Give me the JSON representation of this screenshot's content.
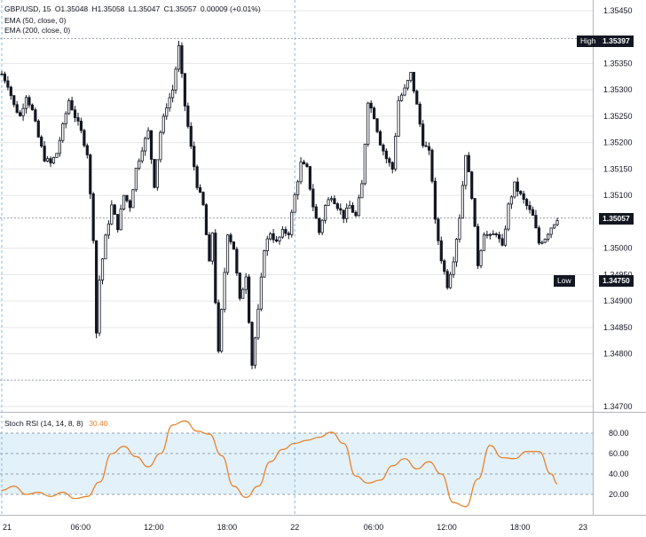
{
  "header": {
    "symbol": "GBP/USD, 15",
    "open": "O1.35048",
    "high": "H1.35058",
    "low": "L1.35047",
    "close": "C1.35057",
    "change": "0.00009 (+0.01%)",
    "ema1": "EMA (50, close, 0)",
    "ema2": "EMA (200, close, 0)"
  },
  "markers": {
    "high_label": "High",
    "high_value": "1.35397",
    "low_label": "Low",
    "low_value": "1.34750",
    "last_value": "1.35057"
  },
  "stoch": {
    "label": "Stoch RSI (14, 14, 8, 8)",
    "value": "30.40"
  },
  "colors": {
    "candle": "#131722",
    "stoch_line": "#e8832a",
    "stoch_band": "#e3f1fb",
    "grid": "#e6e6e6",
    "day_divider": "#8ab8e0"
  },
  "chart_data": [
    {
      "type": "candlestick",
      "title": "GBP/USD, 15",
      "x_ticks": [
        "21",
        "06:00",
        "12:00",
        "18:00",
        "22",
        "06:00",
        "12:00",
        "18:00",
        "23"
      ],
      "y_ticks": [
        "1.35450",
        "1.35350",
        "1.35300",
        "1.35250",
        "1.35200",
        "1.35150",
        "1.35100",
        "1.35000",
        "1.34950",
        "1.34900",
        "1.34850",
        "1.34800",
        "1.34700"
      ],
      "ylim": [
        1.3469,
        1.3547
      ],
      "x_range": [
        0,
        182
      ],
      "grid": true,
      "path": [
        [
          0,
          1.3533
        ],
        [
          2,
          1.3531
        ],
        [
          4,
          1.3527
        ],
        [
          6,
          1.3525
        ],
        [
          8,
          1.3529
        ],
        [
          10,
          1.3526
        ],
        [
          12,
          1.3521
        ],
        [
          14,
          1.3517
        ],
        [
          16,
          1.3516
        ],
        [
          18,
          1.3518
        ],
        [
          20,
          1.3523
        ],
        [
          22,
          1.3528
        ],
        [
          24,
          1.3525
        ],
        [
          26,
          1.3522
        ],
        [
          28,
          1.3518
        ],
        [
          29,
          1.351
        ],
        [
          30,
          1.3502
        ],
        [
          31,
          1.3484
        ],
        [
          32,
          1.3494
        ],
        [
          34,
          1.3502
        ],
        [
          36,
          1.3508
        ],
        [
          38,
          1.3504
        ],
        [
          40,
          1.351
        ],
        [
          42,
          1.3508
        ],
        [
          44,
          1.3515
        ],
        [
          46,
          1.3519
        ],
        [
          48,
          1.3522
        ],
        [
          50,
          1.3512
        ],
        [
          52,
          1.3522
        ],
        [
          54,
          1.3527
        ],
        [
          56,
          1.353
        ],
        [
          58,
          1.3538
        ],
        [
          60,
          1.3527
        ],
        [
          62,
          1.3519
        ],
        [
          64,
          1.3512
        ],
        [
          66,
          1.3508
        ],
        [
          68,
          1.3497
        ],
        [
          69,
          1.3503
        ],
        [
          70,
          1.349
        ],
        [
          71,
          1.348
        ],
        [
          72,
          1.3488
        ],
        [
          74,
          1.3503
        ],
        [
          76,
          1.35
        ],
        [
          78,
          1.349
        ],
        [
          80,
          1.3495
        ],
        [
          82,
          1.3478
        ],
        [
          84,
          1.3488
        ],
        [
          86,
          1.35
        ],
        [
          88,
          1.3503
        ],
        [
          90,
          1.3501
        ],
        [
          92,
          1.3503
        ],
        [
          94,
          1.3503
        ],
        [
          96,
          1.351
        ],
        [
          98,
          1.3516
        ],
        [
          100,
          1.3515
        ],
        [
          102,
          1.3508
        ],
        [
          104,
          1.3503
        ],
        [
          106,
          1.3508
        ],
        [
          108,
          1.351
        ],
        [
          110,
          1.3508
        ],
        [
          112,
          1.3506
        ],
        [
          114,
          1.3508
        ],
        [
          116,
          1.3506
        ],
        [
          118,
          1.3512
        ],
        [
          120,
          1.3528
        ],
        [
          122,
          1.3525
        ],
        [
          124,
          1.352
        ],
        [
          126,
          1.3517
        ],
        [
          128,
          1.3515
        ],
        [
          130,
          1.3528
        ],
        [
          132,
          1.353
        ],
        [
          134,
          1.3533
        ],
        [
          136,
          1.3527
        ],
        [
          138,
          1.352
        ],
        [
          140,
          1.3518
        ],
        [
          141,
          1.3513
        ],
        [
          142,
          1.3505
        ],
        [
          144,
          1.3498
        ],
        [
          146,
          1.3493
        ],
        [
          148,
          1.3498
        ],
        [
          150,
          1.3506
        ],
        [
          152,
          1.3518
        ],
        [
          154,
          1.351
        ],
        [
          156,
          1.3497
        ],
        [
          158,
          1.3503
        ],
        [
          160,
          1.3502
        ],
        [
          162,
          1.3503
        ],
        [
          164,
          1.35
        ],
        [
          166,
          1.3508
        ],
        [
          168,
          1.3512
        ],
        [
          170,
          1.351
        ],
        [
          172,
          1.3508
        ],
        [
          174,
          1.3506
        ],
        [
          176,
          1.3501
        ],
        [
          178,
          1.3502
        ],
        [
          180,
          1.3504
        ],
        [
          182,
          1.35057
        ]
      ],
      "high": 1.35397,
      "low": 1.3475,
      "last": 1.35057
    },
    {
      "type": "line",
      "title": "Stoch RSI (14, 14, 8, 8)",
      "y_ticks": [
        "80.00",
        "60.00",
        "40.00",
        "20.00"
      ],
      "ylim": [
        0,
        100
      ],
      "x_range": [
        0,
        182
      ],
      "band": [
        20,
        80
      ],
      "grid": true,
      "series": [
        {
          "name": "Stoch RSI",
          "x": [
            0,
            4,
            8,
            12,
            16,
            20,
            24,
            28,
            32,
            36,
            40,
            44,
            48,
            52,
            56,
            60,
            64,
            68,
            72,
            76,
            80,
            84,
            88,
            92,
            96,
            100,
            104,
            108,
            112,
            116,
            120,
            124,
            128,
            132,
            136,
            140,
            144,
            148,
            152,
            156,
            160,
            164,
            168,
            172,
            176,
            180,
            182
          ],
          "y": [
            24,
            28,
            20,
            22,
            18,
            22,
            16,
            18,
            32,
            60,
            67,
            57,
            47,
            60,
            88,
            92,
            82,
            79,
            58,
            28,
            17,
            28,
            52,
            64,
            70,
            73,
            76,
            81,
            70,
            38,
            31,
            34,
            48,
            55,
            45,
            52,
            40,
            12,
            8,
            35,
            68,
            56,
            55,
            62,
            62,
            40,
            30.4
          ]
        }
      ]
    }
  ]
}
